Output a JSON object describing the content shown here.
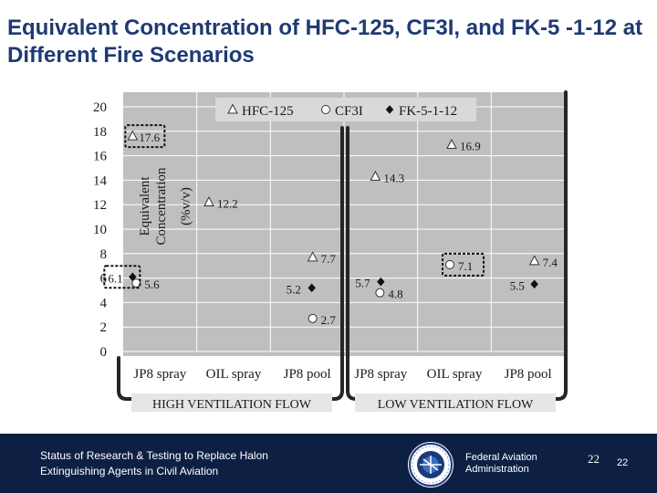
{
  "slide": {
    "title": "Equivalent Concentration of HFC-125, CF3I, and FK-5 -1-12 at Different Fire Scenarios"
  },
  "chart_data": {
    "type": "scatter",
    "ylabel_line1": "Equivalent",
    "ylabel_line2": "Concentration",
    "ylabel_line3": "(%v/v)",
    "ylim": [
      0,
      20
    ],
    "yticks": [
      "0",
      "2",
      "4",
      "6",
      "8",
      "10",
      "12",
      "14",
      "16",
      "18",
      "20"
    ],
    "categories": [
      "JP8 spray",
      "OIL spray",
      "JP8 pool",
      "JP8 spray",
      "OIL spray",
      "JP8 pool"
    ],
    "groups": [
      {
        "label": "HIGH VENTILATION FLOW",
        "categories": [
          0,
          1,
          2
        ]
      },
      {
        "label": "LOW VENTILATION FLOW",
        "categories": [
          3,
          4,
          5
        ]
      }
    ],
    "legend_position": "top",
    "grid": true,
    "series": [
      {
        "name": "HFC-125",
        "marker": "triangle-open",
        "points": [
          {
            "category": 0,
            "value": 17.6,
            "label": "17.6",
            "boxed": true
          },
          {
            "category": 1,
            "value": 12.2,
            "label": "12.2",
            "boxed": false
          },
          {
            "category": 2,
            "value": 7.7,
            "label": "7.7",
            "boxed": false
          },
          {
            "category": 3,
            "value": 14.3,
            "label": "14.3",
            "boxed": false
          },
          {
            "category": 4,
            "value": 16.9,
            "label": "16.9",
            "boxed": false
          },
          {
            "category": 5,
            "value": 7.4,
            "label": "7.4",
            "boxed": false
          }
        ]
      },
      {
        "name": "CF3I",
        "marker": "circle-open",
        "points": [
          {
            "category": 0,
            "value": 5.6,
            "label": "5.6",
            "boxed": false
          },
          {
            "category": 2,
            "value": 2.7,
            "label": "2.7",
            "boxed": false
          },
          {
            "category": 3,
            "value": 4.8,
            "label": "4.8",
            "boxed": false
          },
          {
            "category": 4,
            "value": 7.1,
            "label": "7.1",
            "boxed": true
          }
        ]
      },
      {
        "name": "FK-5-1-12",
        "marker": "diamond-filled",
        "points": [
          {
            "category": 0,
            "value": 6.1,
            "label": "6.1",
            "boxed": true
          },
          {
            "category": 2,
            "value": 5.2,
            "label": "5.2",
            "boxed": false
          },
          {
            "category": 3,
            "value": 5.7,
            "label": "5.7",
            "boxed": false
          },
          {
            "category": 5,
            "value": 5.5,
            "label": "5.5",
            "boxed": false
          }
        ]
      }
    ]
  },
  "footer": {
    "text_line1": "Status of Research & Testing to Replace Halon",
    "text_line2": "Extinguishing Agents in Civil Aviation",
    "agency_line1": "Federal Aviation",
    "agency_line2": "Administration",
    "page_number_a": "22",
    "page_number_b": "22"
  },
  "colors": {
    "title": "#1f3a73",
    "footer_bg": "#0d2043",
    "plot_bg": "#bfbfbf",
    "grid": "#ffffff",
    "bracket": "#262626"
  }
}
